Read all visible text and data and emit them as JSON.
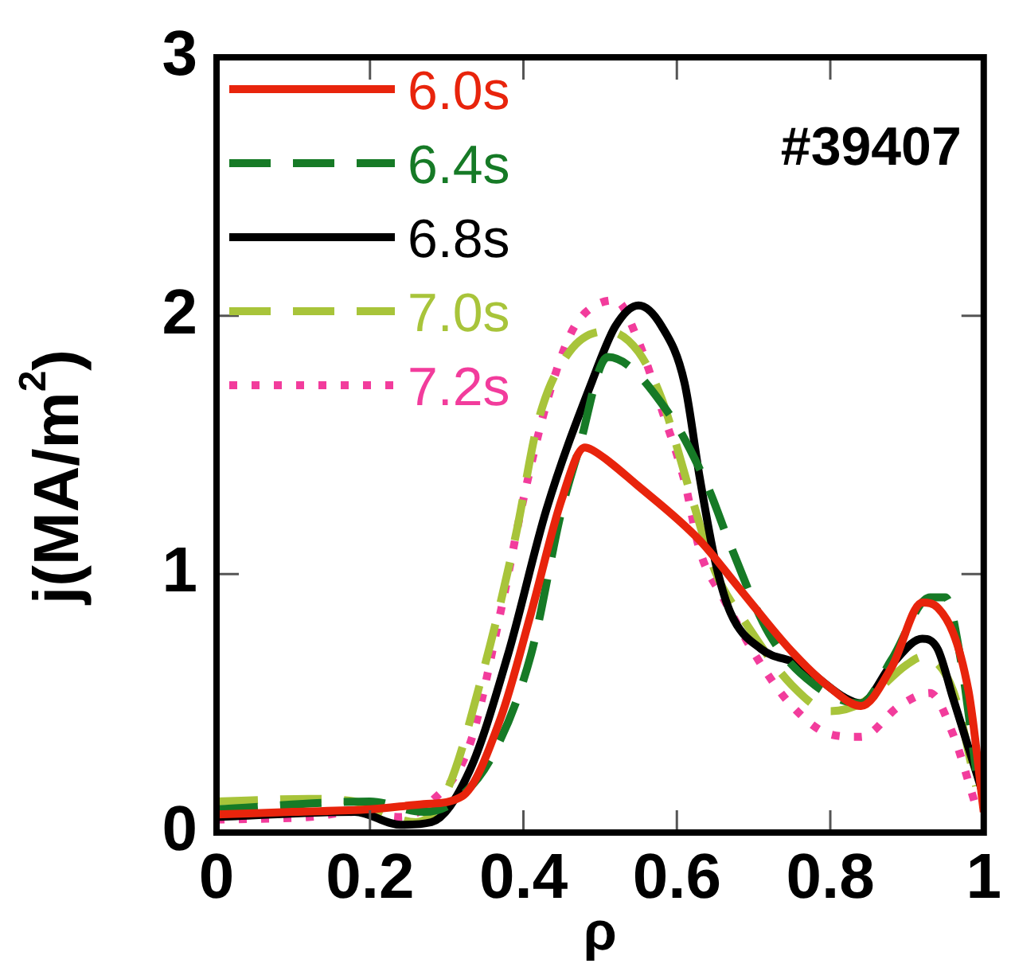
{
  "chart_data": {
    "type": "line",
    "xlabel": "ρ",
    "ylabel": "j(MA/m$^{2}$)",
    "xlim": [
      0,
      1
    ],
    "ylim": [
      0,
      3
    ],
    "xticks": [
      0,
      0.2,
      0.4,
      0.6,
      0.8,
      1
    ],
    "yticks": [
      0,
      1,
      2,
      3
    ],
    "grid": false,
    "legend": "top left",
    "marker": "none",
    "annotations": [
      "#39407"
    ],
    "series": [
      {
        "name": "6.0s",
        "color": "#e8240c",
        "line_style": "solid",
        "x": [
          0,
          0.1,
          0.2,
          0.27,
          0.32,
          0.37,
          0.41,
          0.45,
          0.48,
          0.49,
          0.55,
          0.63,
          0.68,
          0.75,
          0.8,
          0.84,
          0.88,
          0.92,
          0.94,
          0.98,
          1.0
        ],
        "values": [
          0.07,
          0.08,
          0.09,
          0.11,
          0.14,
          0.44,
          0.85,
          1.29,
          1.49,
          1.48,
          1.34,
          1.13,
          0.95,
          0.7,
          0.56,
          0.49,
          0.64,
          0.89,
          0.87,
          0.55,
          0.08
        ]
      },
      {
        "name": "6.4s",
        "color": "#167a26",
        "line_style": "dashed",
        "x": [
          0,
          0.2,
          0.27,
          0.31,
          0.36,
          0.41,
          0.45,
          0.47,
          0.51,
          0.59,
          0.64,
          0.67,
          0.72,
          0.78,
          0.84,
          0.88,
          0.93,
          0.95,
          0.97,
          0.99
        ],
        "values": [
          0.09,
          0.12,
          0.08,
          0.12,
          0.3,
          0.69,
          1.25,
          1.46,
          1.84,
          1.62,
          1.34,
          1.11,
          0.77,
          0.57,
          0.5,
          0.67,
          0.91,
          0.91,
          0.67,
          0.24
        ]
      },
      {
        "name": "6.8s",
        "color": "#000000",
        "line_style": "solid",
        "x": [
          0,
          0.18,
          0.24,
          0.28,
          0.33,
          0.38,
          0.43,
          0.49,
          0.52,
          0.55,
          0.58,
          0.61,
          0.63,
          0.65,
          0.67,
          0.71,
          0.76,
          0.82,
          0.84,
          0.88,
          0.92,
          0.94,
          0.96,
          1.0
        ],
        "values": [
          0.06,
          0.08,
          0.03,
          0.04,
          0.24,
          0.69,
          1.25,
          1.75,
          1.96,
          2.04,
          1.96,
          1.74,
          1.37,
          1.05,
          0.85,
          0.71,
          0.65,
          0.52,
          0.5,
          0.65,
          0.75,
          0.71,
          0.52,
          0.14
        ]
      },
      {
        "name": "7.0s",
        "color": "#a8c43a",
        "line_style": "dashed",
        "x": [
          0,
          0.12,
          0.18,
          0.26,
          0.3,
          0.35,
          0.39,
          0.42,
          0.46,
          0.51,
          0.55,
          0.58,
          0.62,
          0.65,
          0.69,
          0.75,
          0.8,
          0.84,
          0.9,
          0.92,
          0.96,
          0.99
        ],
        "values": [
          0.12,
          0.13,
          0.12,
          0.04,
          0.16,
          0.65,
          1.15,
          1.6,
          1.86,
          1.94,
          1.86,
          1.68,
          1.29,
          1.01,
          0.81,
          0.57,
          0.47,
          0.5,
          0.65,
          0.68,
          0.55,
          0.18
        ]
      },
      {
        "name": "7.2s",
        "color": "#f23c9c",
        "line_style": "dotted",
        "x": [
          0,
          0.12,
          0.18,
          0.24,
          0.28,
          0.33,
          0.37,
          0.4,
          0.43,
          0.46,
          0.48,
          0.52,
          0.55,
          0.58,
          0.61,
          0.63,
          0.66,
          0.71,
          0.75,
          0.8,
          0.84,
          0.89,
          0.93,
          0.96,
          0.99
        ],
        "values": [
          0.05,
          0.06,
          0.08,
          0.06,
          0.12,
          0.34,
          0.85,
          1.29,
          1.66,
          1.92,
          2.01,
          2.06,
          1.9,
          1.64,
          1.36,
          1.09,
          0.91,
          0.65,
          0.49,
          0.38,
          0.37,
          0.49,
          0.54,
          0.38,
          0.1
        ]
      }
    ]
  }
}
